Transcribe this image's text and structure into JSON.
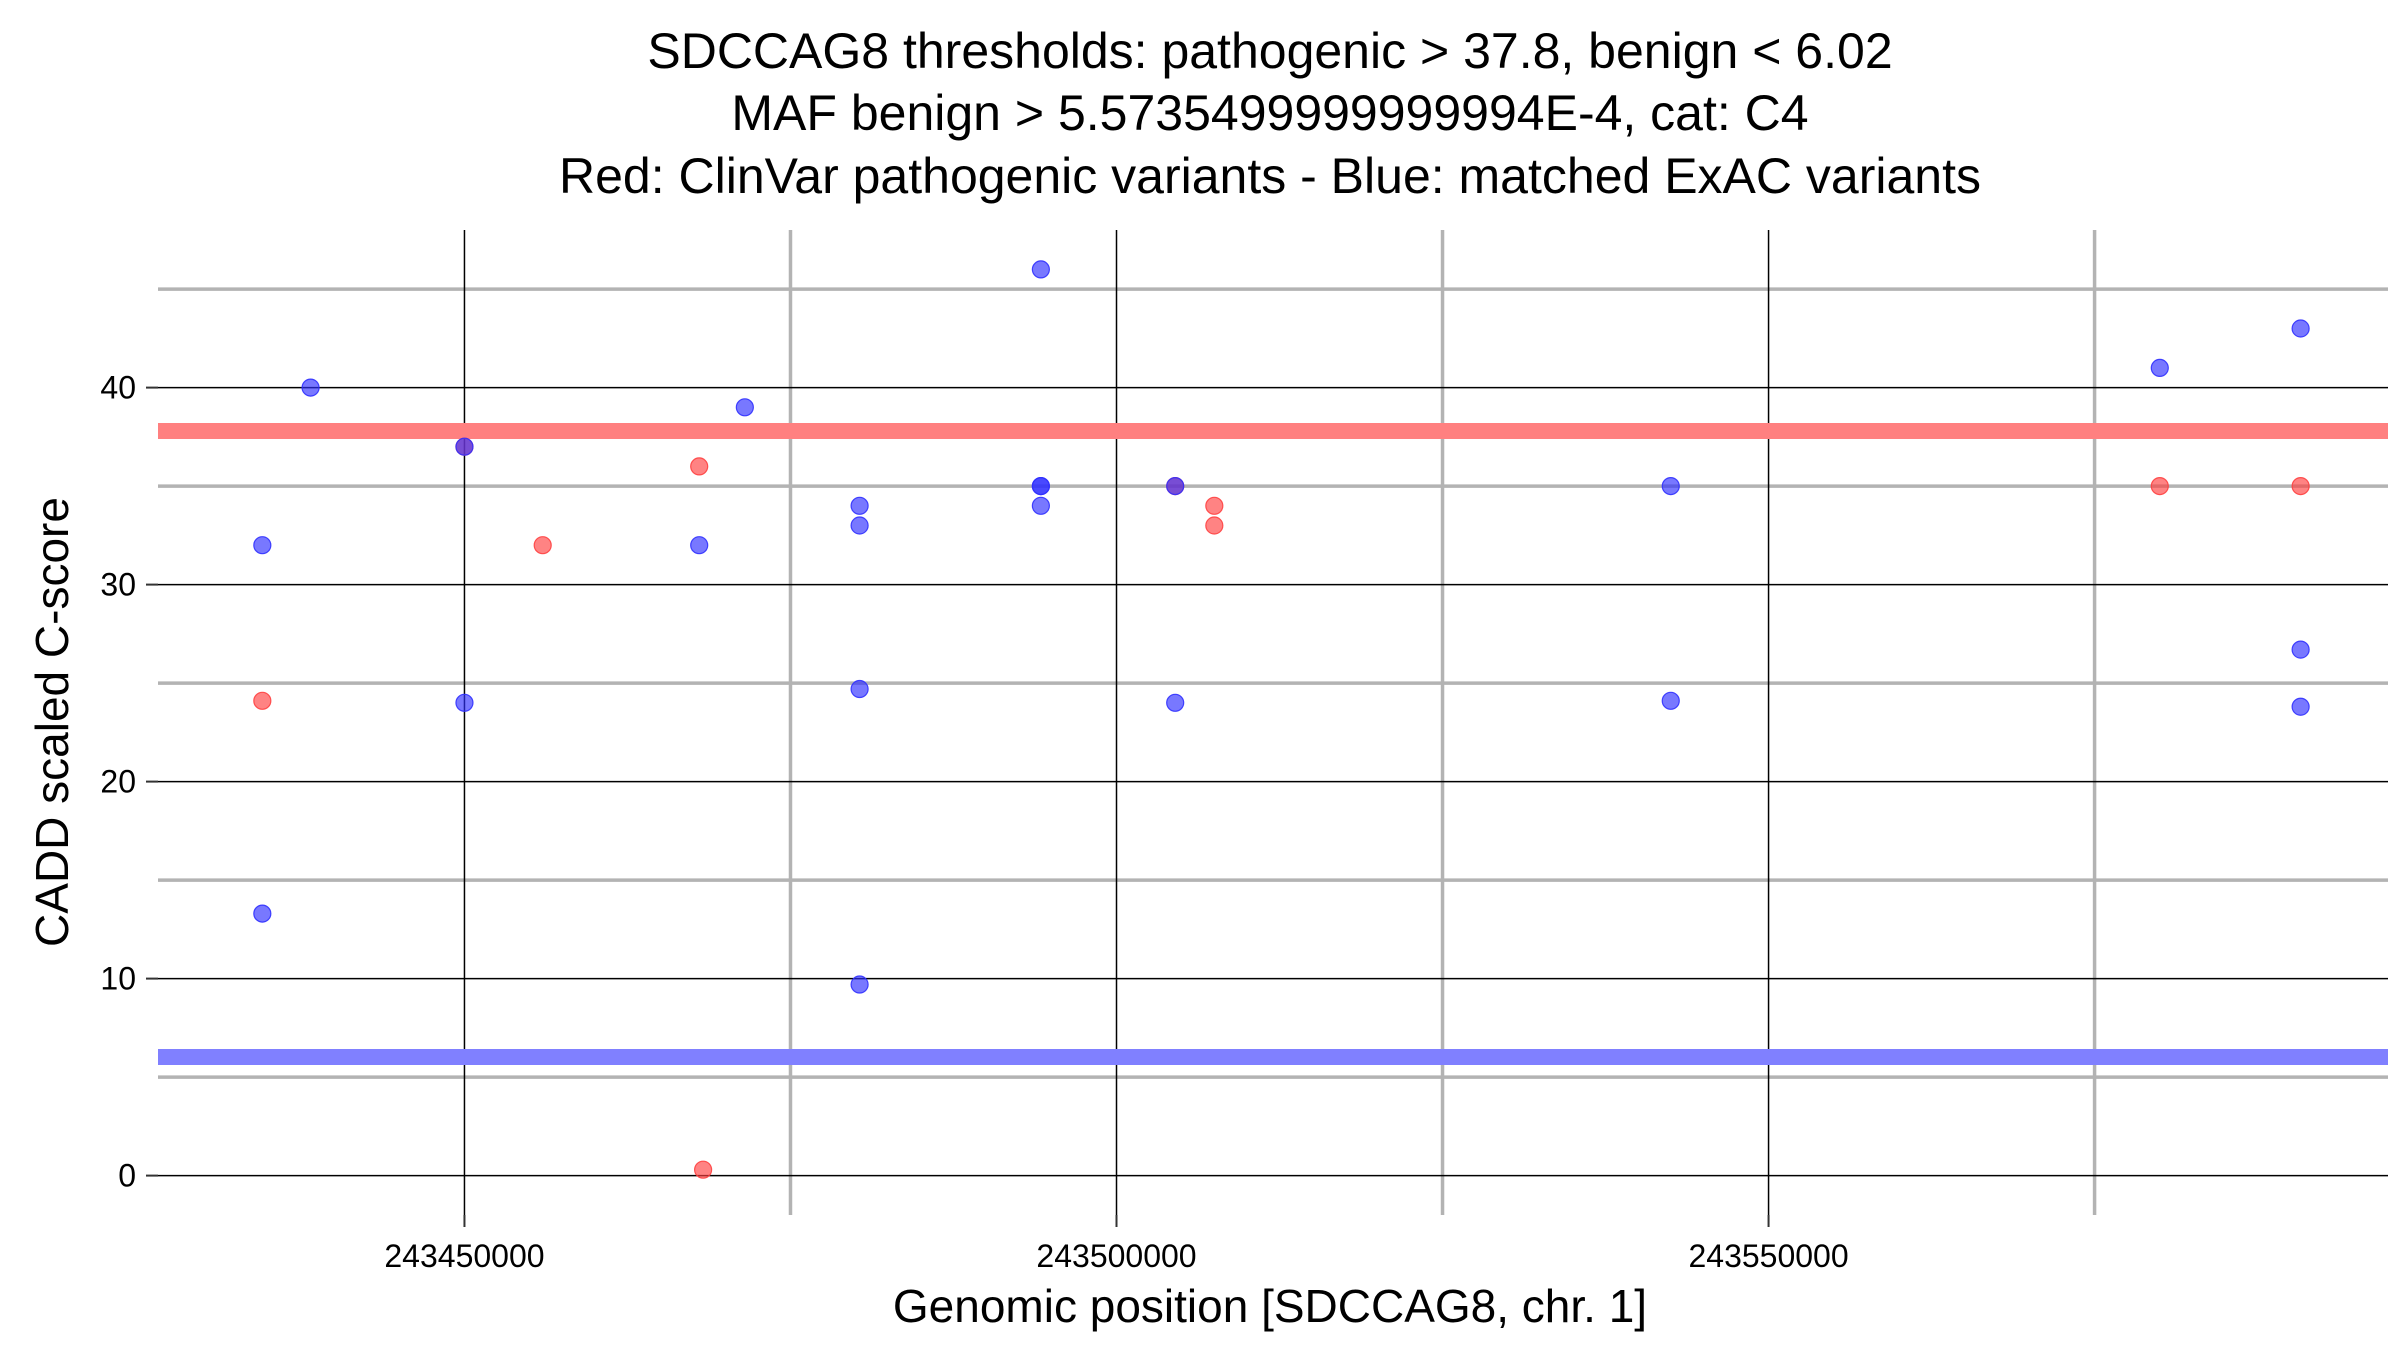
{
  "chart_data": {
    "type": "scatter",
    "title_lines": [
      "SDCCAG8 thresholds: pathogenic > 37.8, benign < 6.02",
      "MAF benign > 5.5735499999999994E-4, cat: C4",
      "Red: ClinVar pathogenic variants - Blue: matched ExAC variants"
    ],
    "xlabel": "Genomic position [SDCCAG8, chr. 1]",
    "ylabel": "CADD scaled C-score",
    "xlim": [
      243426500,
      243597500
    ],
    "ylim": [
      -2,
      48
    ],
    "x_ticks": [
      243450000,
      243500000,
      243550000
    ],
    "x_tick_labels": [
      "243450000",
      "243500000",
      "243550000"
    ],
    "x_minor_grid": [
      243475000,
      243525000,
      243575000
    ],
    "y_ticks": [
      0,
      10,
      20,
      30,
      40
    ],
    "y_tick_labels": [
      "0",
      "10",
      "20",
      "30",
      "40"
    ],
    "y_minor_grid": [
      5,
      15,
      25,
      35,
      45
    ],
    "grid": true,
    "thresholds": [
      {
        "value": 37.8,
        "color": "#ff8080"
      },
      {
        "value": 6.02,
        "color": "#8080ff"
      }
    ],
    "series": [
      {
        "color": "#ff4040",
        "points": [
          [
            243434500,
            24.1
          ],
          [
            243450000,
            37
          ],
          [
            243456000,
            32
          ],
          [
            243468000,
            36
          ],
          [
            243468300,
            0.3
          ],
          [
            243504500,
            35
          ],
          [
            243507500,
            34
          ],
          [
            243507500,
            33
          ],
          [
            243580000,
            35
          ],
          [
            243590800,
            35
          ]
        ]
      },
      {
        "color": "#3030ff",
        "points": [
          [
            243434500,
            32
          ],
          [
            243434500,
            13.3
          ],
          [
            243438200,
            40
          ],
          [
            243450000,
            24
          ],
          [
            243450000,
            37
          ],
          [
            243468000,
            32
          ],
          [
            243471500,
            39
          ],
          [
            243480300,
            34
          ],
          [
            243480300,
            33
          ],
          [
            243480300,
            24.7
          ],
          [
            243480300,
            9.7
          ],
          [
            243494200,
            46
          ],
          [
            243494200,
            35
          ],
          [
            243494200,
            35
          ],
          [
            243494200,
            34
          ],
          [
            243504500,
            35
          ],
          [
            243504500,
            24
          ],
          [
            243542500,
            35
          ],
          [
            243542500,
            24.1
          ],
          [
            243580000,
            41
          ],
          [
            243590800,
            43
          ],
          [
            243590800,
            26.7
          ],
          [
            243590800,
            23.8
          ]
        ]
      }
    ]
  }
}
